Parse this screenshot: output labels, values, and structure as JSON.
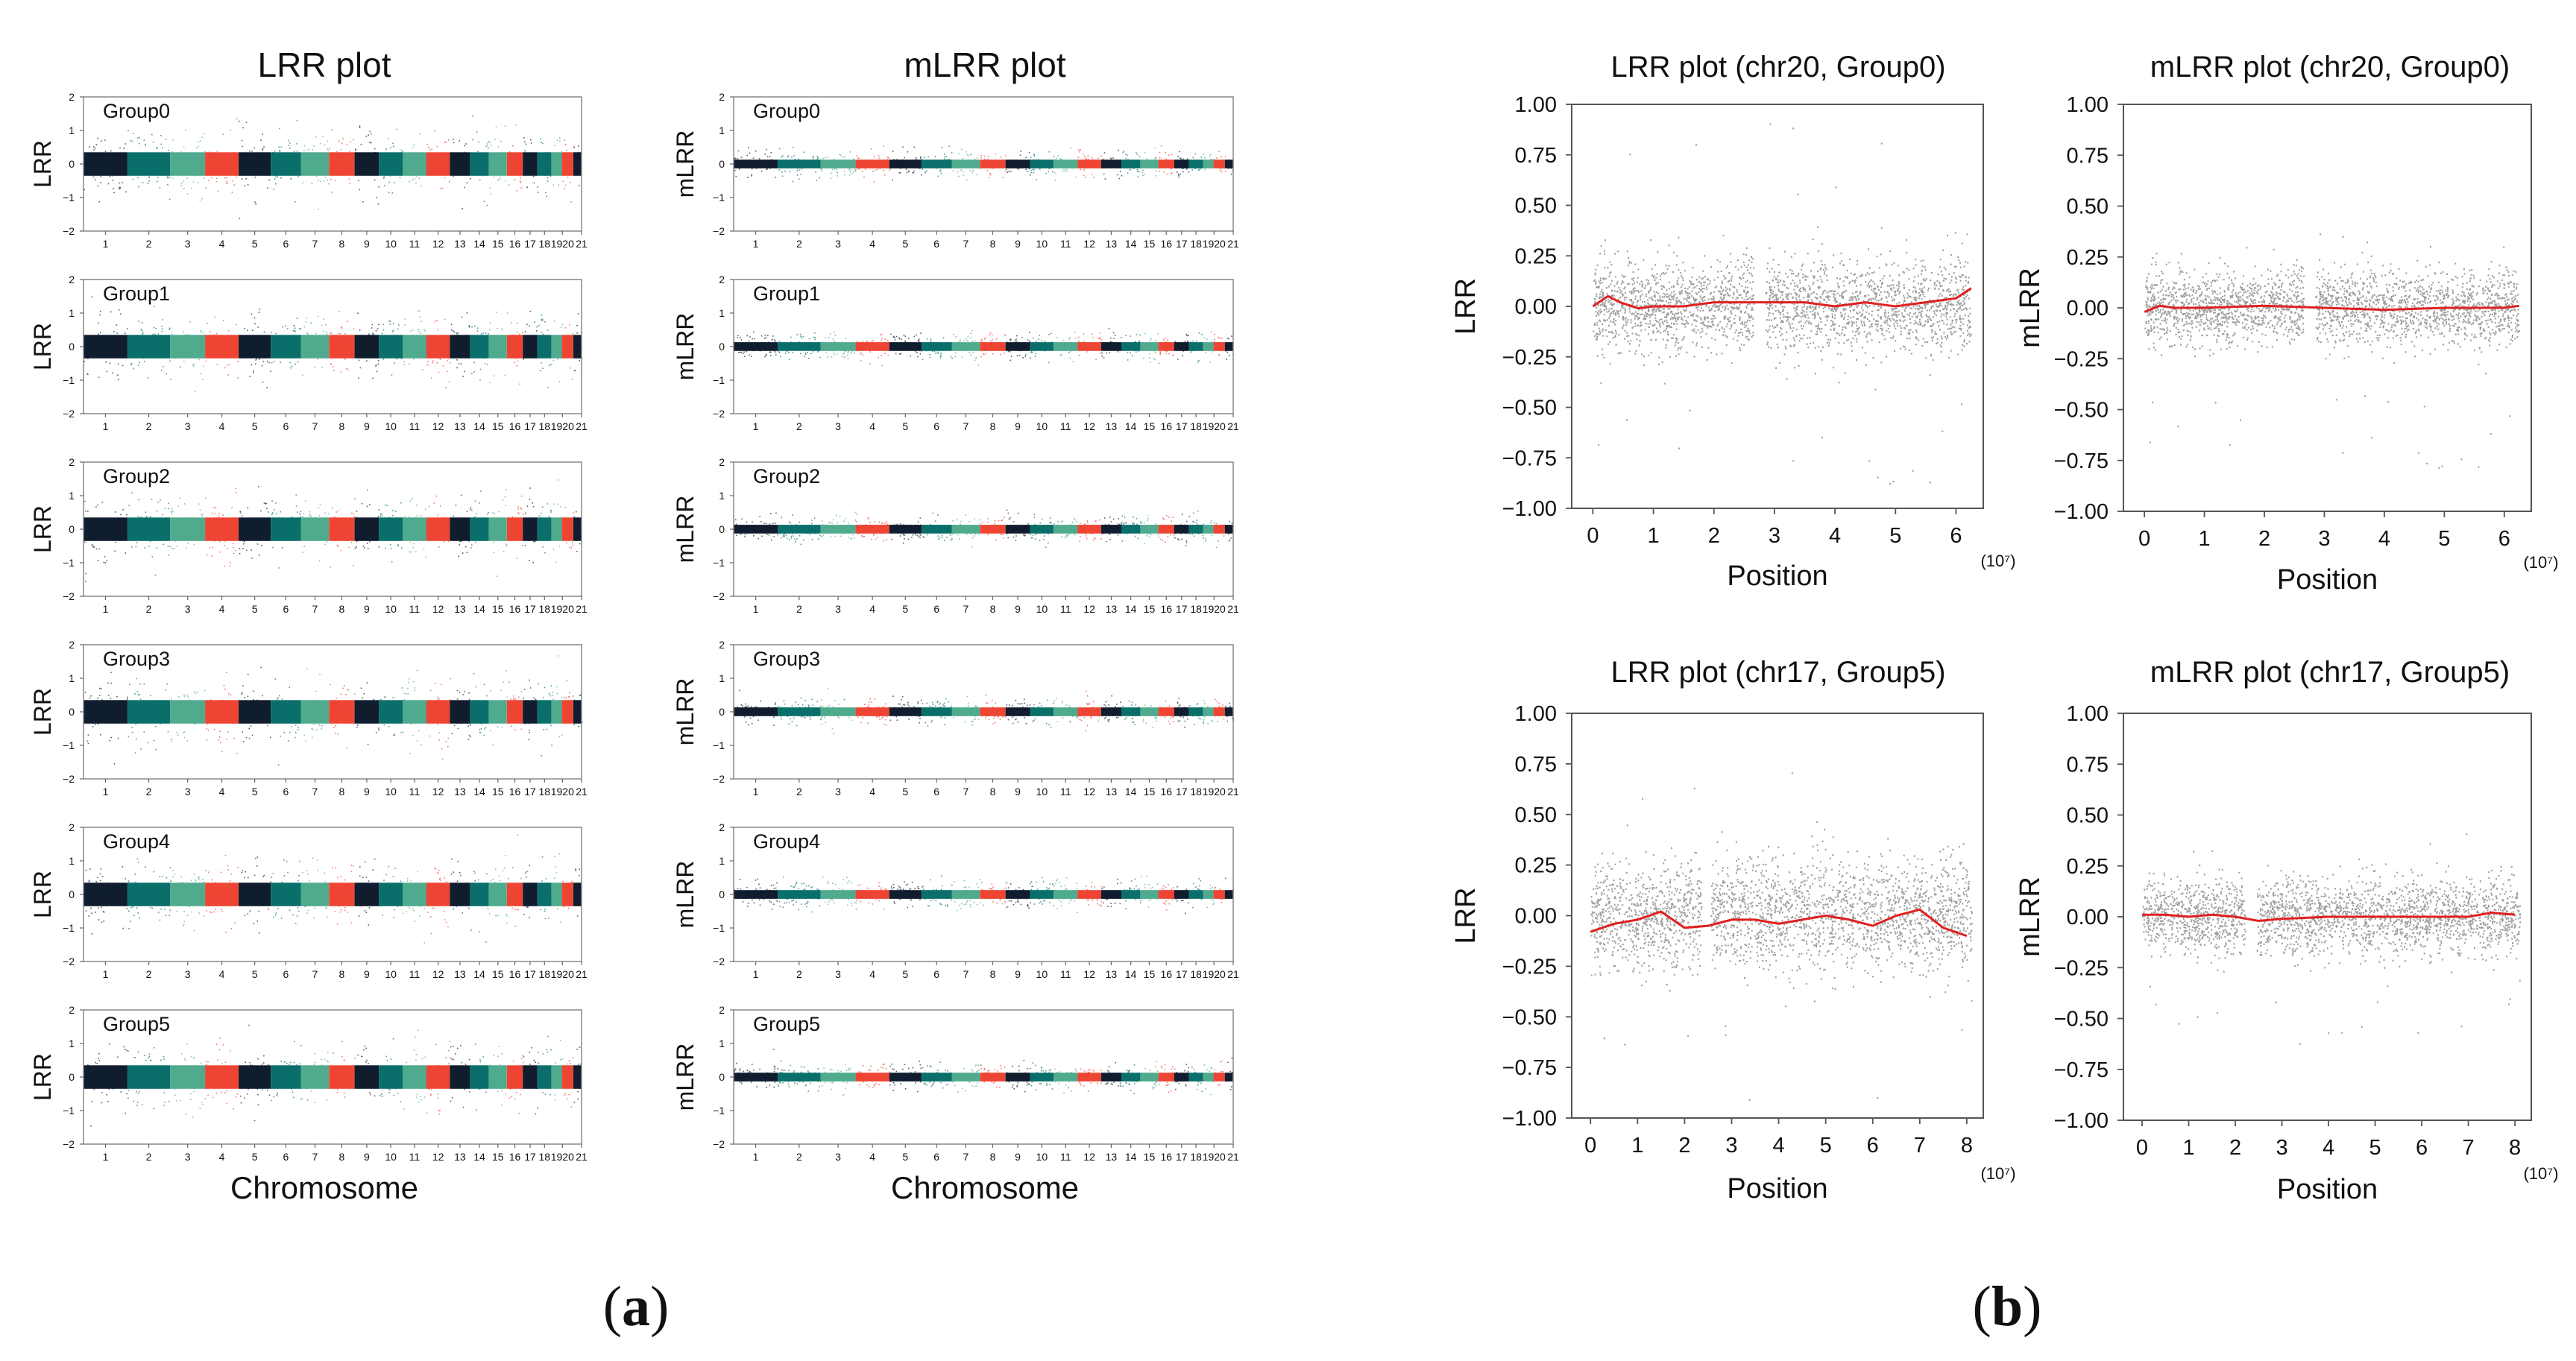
{
  "figure": {
    "panel_a": {
      "open": "(",
      "letter": "a",
      "close": ")"
    },
    "panel_b": {
      "open": "(",
      "letter": "b",
      "close": ")"
    }
  },
  "colors": {
    "chrom_cycle": [
      "#101d2e",
      "#0a6f6a",
      "#4faa8e",
      "#ee4433"
    ],
    "scatter": "#7f7f7f",
    "smooth": "#e02020",
    "axis": "#555555"
  },
  "chart_data": [
    {
      "id": "lrr_genome",
      "type": "scatter",
      "title": "LRR plot",
      "xlabel": "Chromosome",
      "ylabel": "LRR",
      "ylim": [
        -2,
        2
      ],
      "yticks": [
        "2",
        "1",
        "0",
        "−1",
        "−2"
      ],
      "chromosomes": [
        "1",
        "2",
        "3",
        "4",
        "5",
        "6",
        "7",
        "8",
        "9",
        "10",
        "11",
        "12",
        "13",
        "14",
        "15",
        "16",
        "17",
        "18",
        "19",
        "20",
        "21"
      ],
      "chrom_sizes": [
        249,
        242,
        198,
        190,
        182,
        171,
        159,
        145,
        138,
        134,
        135,
        133,
        114,
        107,
        102,
        90,
        83,
        80,
        59,
        64,
        47
      ],
      "xtick_labels": [
        "1",
        "2",
        "3",
        "4",
        "5",
        "6",
        "7",
        "8",
        "9",
        "10",
        "11",
        "12",
        "13",
        "14",
        "15",
        "16",
        "17",
        "18",
        "1920",
        "21"
      ],
      "groups": [
        "Group0",
        "Group1",
        "Group2",
        "Group3",
        "Group4",
        "Group5"
      ],
      "band_halfwidth": 0.35,
      "scatter_spread": 0.85
    },
    {
      "id": "mlrr_genome",
      "type": "scatter",
      "title": "mLRR plot",
      "xlabel": "Chromosome",
      "ylabel": "mLRR",
      "ylim": [
        -2,
        2
      ],
      "yticks": [
        "2",
        "1",
        "0",
        "−1",
        "−2"
      ],
      "chromosomes": [
        "1",
        "2",
        "3",
        "4",
        "5",
        "6",
        "7",
        "8",
        "9",
        "10",
        "11",
        "12",
        "13",
        "14",
        "15",
        "16",
        "17",
        "18",
        "19",
        "20",
        "21"
      ],
      "chrom_sizes": [
        249,
        242,
        198,
        190,
        182,
        171,
        159,
        145,
        138,
        134,
        135,
        133,
        114,
        107,
        102,
        90,
        83,
        80,
        59,
        64,
        47
      ],
      "xtick_labels": [
        "1",
        "2",
        "3",
        "4",
        "5",
        "6",
        "7",
        "8",
        "9",
        "10",
        "11",
        "12",
        "13",
        "14",
        "15",
        "16",
        "17",
        "18",
        "1920",
        "21"
      ],
      "groups": [
        "Group0",
        "Group1",
        "Group2",
        "Group3",
        "Group4",
        "Group5"
      ],
      "band_halfwidth": 0.13,
      "scatter_spread": 0.35
    },
    {
      "id": "lrr_chr20",
      "type": "scatter",
      "title": "LRR plot (chr20, Group0)",
      "xlabel": "Position",
      "x_unit": "(10⁷)",
      "ylabel": "LRR",
      "xlim": [
        -0.35,
        6.45
      ],
      "xticks": [
        0,
        1,
        2,
        3,
        4,
        5,
        6
      ],
      "ylim": [
        -1.0,
        1.0
      ],
      "yticks": [
        "1.00",
        "0.75",
        "0.50",
        "0.25",
        "0.00",
        "−0.25",
        "−0.50",
        "−0.75",
        "−1.00"
      ],
      "data_range": [
        0.0,
        6.25
      ],
      "gap": [
        2.65,
        2.85
      ],
      "band_sd": 0.11,
      "outlier_min": -0.9,
      "outlier_max": 0.93,
      "smooth": {
        "x": [
          0.0,
          0.25,
          0.45,
          0.75,
          1.0,
          1.5,
          2.0,
          2.5,
          3.0,
          3.5,
          4.0,
          4.5,
          5.0,
          5.5,
          6.0,
          6.25
        ],
        "y": [
          0.0,
          0.05,
          0.02,
          -0.01,
          0.0,
          0.0,
          0.02,
          0.02,
          0.02,
          0.02,
          0.0,
          0.02,
          0.0,
          0.02,
          0.04,
          0.09
        ]
      }
    },
    {
      "id": "mlrr_chr20",
      "type": "scatter",
      "title": "mLRR plot (chr20, Group0)",
      "xlabel": "Position",
      "x_unit": "(10⁷)",
      "ylabel": "mLRR",
      "xlim": [
        -0.35,
        6.45
      ],
      "xticks": [
        0,
        1,
        2,
        3,
        4,
        5,
        6
      ],
      "ylim": [
        -1.0,
        1.0
      ],
      "yticks": [
        "1.00",
        "0.75",
        "0.50",
        "0.25",
        "0.00",
        "−0.25",
        "−0.50",
        "−0.75",
        "−1.00"
      ],
      "data_range": [
        0.0,
        6.25
      ],
      "gap": [
        2.65,
        2.85
      ],
      "band_sd": 0.09,
      "outlier_min": -0.8,
      "outlier_max": 0.38,
      "smooth": {
        "x": [
          0.0,
          0.25,
          0.5,
          1.0,
          2.0,
          3.0,
          4.0,
          5.0,
          6.0,
          6.25
        ],
        "y": [
          -0.02,
          0.01,
          0.0,
          0.0,
          0.01,
          0.0,
          -0.01,
          0.0,
          0.0,
          0.01
        ]
      }
    },
    {
      "id": "lrr_chr17",
      "type": "scatter",
      "title": "LRR plot (chr17, Group5)",
      "xlabel": "Position",
      "x_unit": "(10⁷)",
      "ylabel": "LRR",
      "xlim": [
        -0.4,
        8.35
      ],
      "xticks": [
        0,
        1,
        2,
        3,
        4,
        5,
        6,
        7,
        8
      ],
      "ylim": [
        -1.0,
        1.0
      ],
      "yticks": [
        "1.00",
        "0.75",
        "0.50",
        "0.25",
        "0.00",
        "−0.25",
        "−0.50",
        "−0.75",
        "−1.00"
      ],
      "data_range": [
        0.0,
        8.1
      ],
      "gap": [
        2.35,
        2.55
      ],
      "band_sd": 0.13,
      "outlier_min": -0.95,
      "outlier_max": 0.75,
      "smooth": {
        "x": [
          0.0,
          0.5,
          1.0,
          1.5,
          2.0,
          2.5,
          3.0,
          3.5,
          4.0,
          4.5,
          5.0,
          5.5,
          6.0,
          6.5,
          7.0,
          7.5,
          8.0
        ],
        "y": [
          -0.08,
          -0.04,
          -0.02,
          0.02,
          -0.06,
          -0.05,
          -0.02,
          -0.02,
          -0.04,
          -0.02,
          0.0,
          -0.02,
          -0.05,
          0.0,
          0.03,
          -0.06,
          -0.1
        ]
      }
    },
    {
      "id": "mlrr_chr17",
      "type": "scatter",
      "title": "mLRR plot (chr17, Group5)",
      "xlabel": "Position",
      "x_unit": "(10⁷)",
      "ylabel": "mLRR",
      "xlim": [
        -0.4,
        8.35
      ],
      "xticks": [
        0,
        1,
        2,
        3,
        4,
        5,
        6,
        7,
        8
      ],
      "ylim": [
        -1.0,
        1.0
      ],
      "yticks": [
        "1.00",
        "0.75",
        "0.50",
        "0.25",
        "0.00",
        "−0.25",
        "−0.50",
        "−0.75",
        "−1.00"
      ],
      "data_range": [
        0.0,
        8.1
      ],
      "gap": [
        2.2,
        2.45
      ],
      "band_sd": 0.09,
      "outlier_min": -0.65,
      "outlier_max": 0.43,
      "smooth": {
        "x": [
          0.0,
          0.5,
          1.0,
          1.5,
          2.0,
          2.5,
          3.0,
          4.0,
          5.0,
          6.0,
          7.0,
          7.5,
          8.0
        ],
        "y": [
          0.01,
          0.01,
          0.0,
          0.01,
          0.0,
          -0.02,
          -0.01,
          0.0,
          0.0,
          0.0,
          0.0,
          0.02,
          0.01
        ]
      }
    }
  ]
}
